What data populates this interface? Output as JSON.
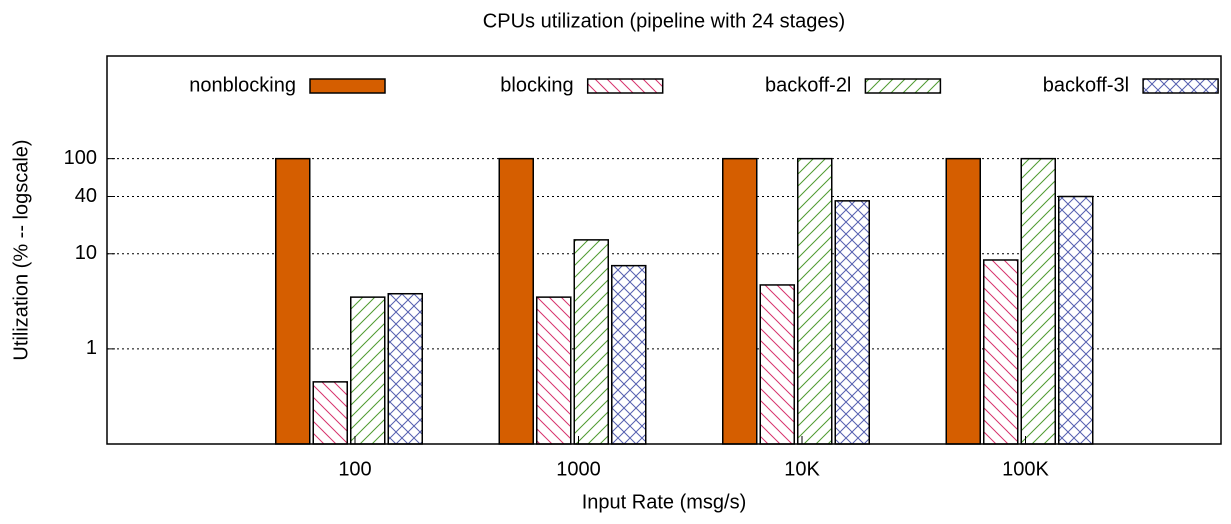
{
  "chart_data": {
    "type": "bar",
    "title": "CPUs utilization (pipeline with 24 stages)",
    "x_label": "Input Rate (msg/s)",
    "y_label": "Utilization (% -- logscale)",
    "categories": [
      "100",
      "1000",
      "10K",
      "100K"
    ],
    "series": [
      {
        "name": "nonblocking",
        "color": "#d55e00",
        "values": [
          100,
          100,
          100,
          100
        ]
      },
      {
        "name": "blocking",
        "color": "#d6336c",
        "values": [
          0.45,
          3.5,
          4.7,
          8.6
        ]
      },
      {
        "name": "backoff-2l",
        "color": "#4e9a2f",
        "values": [
          3.5,
          14,
          100,
          100
        ]
      },
      {
        "name": "backoff-3l",
        "color": "#5560b0",
        "values": [
          3.8,
          7.5,
          36,
          40
        ]
      }
    ],
    "ylim": [
      0.1,
      1200
    ],
    "yticks": [
      1,
      10,
      40,
      100
    ],
    "log_scale": true,
    "grid": true,
    "legend": "top"
  }
}
